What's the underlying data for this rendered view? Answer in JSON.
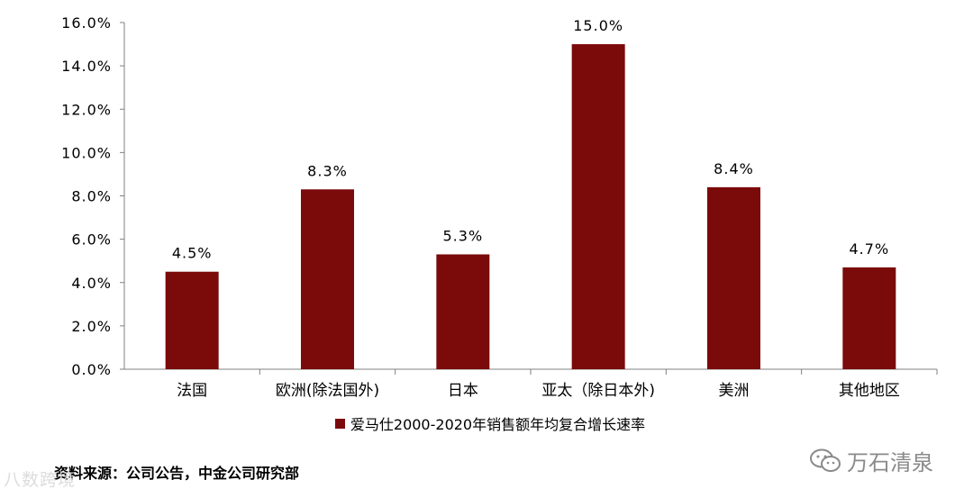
{
  "chart_data": {
    "type": "bar",
    "categories": [
      "法国",
      "欧洲(除法国外)",
      "日本",
      "亚太（除日本外)",
      "美洲",
      "其他地区"
    ],
    "series": [
      {
        "name": "爱马仕2000-2020年销售额年均复合增长速率",
        "values": [
          4.5,
          8.3,
          5.3,
          15.0,
          8.4,
          4.7
        ],
        "color": "#7b0a0a"
      }
    ],
    "data_labels": [
      "4.5%",
      "8.3%",
      "5.3%",
      "15.0%",
      "8.4%",
      "4.7%"
    ],
    "yticks": [
      "0.0%",
      "2.0%",
      "4.0%",
      "6.0%",
      "8.0%",
      "10.0%",
      "12.0%",
      "14.0%",
      "16.0%"
    ],
    "ylim": [
      0,
      16
    ],
    "grid": false,
    "legend_position": "bottom"
  },
  "legend": {
    "label": "爱马仕2000-2020年销售额年均复合增长速率"
  },
  "source_note": "资料来源：公司公告，中金公司研究部",
  "watermarks": {
    "left": "八数跨境",
    "right": "万石清泉"
  },
  "icons": {
    "wechat": "wechat-icon"
  }
}
